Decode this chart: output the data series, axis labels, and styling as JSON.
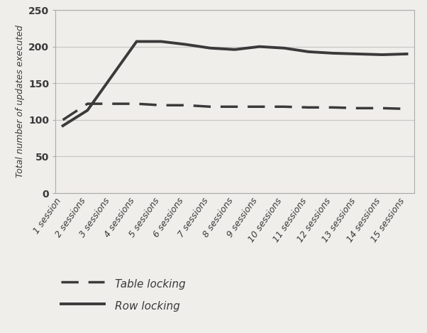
{
  "x_labels": [
    "1 session",
    "2 sessions",
    "3 sessions",
    "4 sessions",
    "5 sessions",
    "6 sessions",
    "7 sessions",
    "8 sessions",
    "9 sessions",
    "10 sessions",
    "11 sessions",
    "12 sessions",
    "13 sessions",
    "14 sessions",
    "15 sessions"
  ],
  "table_locking": [
    100,
    122,
    122,
    122,
    120,
    120,
    118,
    118,
    118,
    118,
    117,
    117,
    116,
    116,
    115
  ],
  "row_locking": [
    92,
    113,
    160,
    207,
    207,
    203,
    198,
    196,
    200,
    198,
    193,
    191,
    190,
    189,
    190
  ],
  "ylabel": "Total number of updates executed",
  "ylim": [
    0,
    250
  ],
  "yticks": [
    0,
    50,
    100,
    150,
    200,
    250
  ],
  "line_color": "#3a3a3a",
  "bg_color": "#f0eeea",
  "plot_bg": "#f0eeea",
  "grid_color": "#c8c8c8",
  "legend_table_label": "Table locking",
  "legend_row_label": "Row locking",
  "font_color": "#3a3a3a",
  "tick_fontsize": 9,
  "ylabel_fontsize": 9,
  "legend_fontsize": 11
}
